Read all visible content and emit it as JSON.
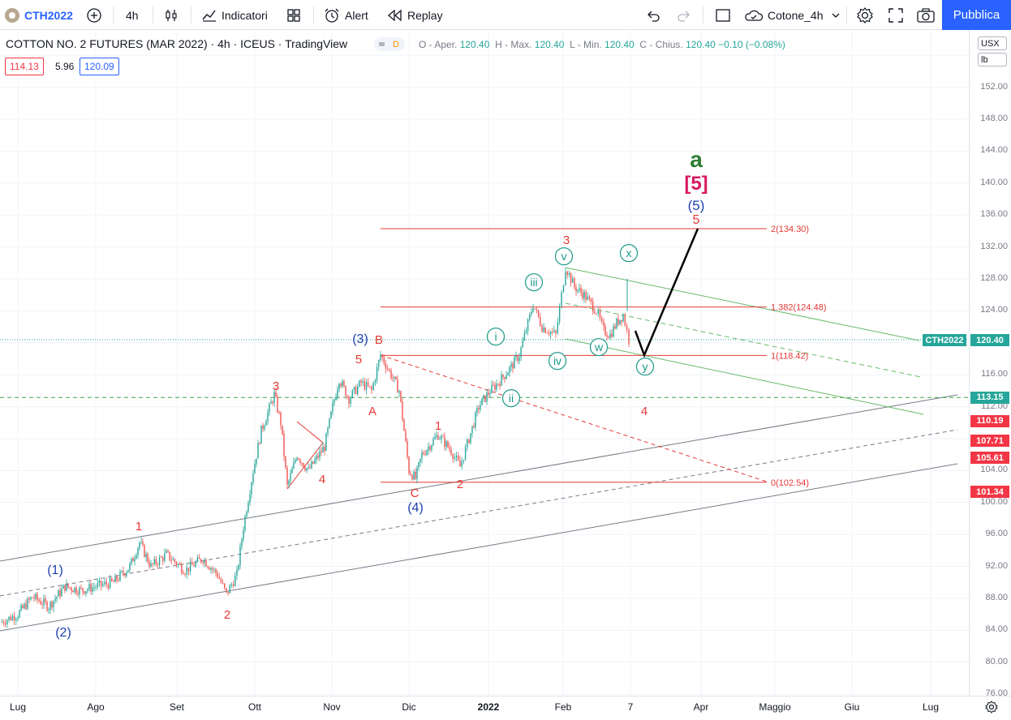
{
  "toolbar": {
    "symbol": "CTH2022",
    "interval": "4h",
    "indicators_label": "Indicatori",
    "alert_label": "Alert",
    "replay_label": "Replay",
    "layout_name": "Cotone_4h",
    "publish_label": "Pubblica"
  },
  "legend": {
    "title": "COTTON NO. 2 FUTURES (MAR 2022) · 4h · ICEUS · TradingView",
    "badge": "D",
    "open_label": "O - Aper.",
    "open": "120.40",
    "high_label": "H - Max.",
    "high": "120.40",
    "low_label": "L - Min.",
    "low": "120.40",
    "close_label": "C - Chius.",
    "close": "120.40",
    "change": "−0.10 (−0.08%)",
    "ind_upper": "114.13",
    "ind_width": "5.96",
    "ind_lower": "120.09"
  },
  "price_scale": {
    "currency": "USX",
    "unit": "lb",
    "ticks": [
      "152.00",
      "148.00",
      "144.00",
      "140.00",
      "136.00",
      "132.00",
      "128.00",
      "124.00",
      "116.00",
      "112.00",
      "104.00",
      "100.00",
      "96.00",
      "92.00",
      "88.00",
      "84.00",
      "80.00",
      "76.00"
    ],
    "last_price": "120.40",
    "symbol_tag": "CTH2022",
    "tags": [
      {
        "value": "113.15",
        "color": "#26a69a"
      },
      {
        "value": "110.19",
        "color": "#f23645"
      },
      {
        "value": "107.71",
        "color": "#f23645"
      },
      {
        "value": "105.61",
        "color": "#f23645"
      },
      {
        "value": "101.34",
        "color": "#f23645"
      }
    ]
  },
  "time_scale": {
    "labels": [
      "Lug",
      "Ago",
      "Set",
      "Ott",
      "Nov",
      "Dic",
      "2022",
      "Feb",
      "7",
      "Apr",
      "Maggio",
      "Giu",
      "Lug"
    ]
  },
  "colors": {
    "up": "#26a69a",
    "down": "#ef5350",
    "accent": "#2962ff",
    "wave_red": "#e53935",
    "wave_blue": "#1e40af",
    "wave_green": "#2e7d32",
    "wave_teal": "#1e9a8a",
    "fib_red": "#e53935",
    "channel_gray": "#787b86",
    "channel_green": "#66bb6a"
  },
  "chart_data": {
    "type": "candlestick",
    "symbol": "CTH2022",
    "interval": "4h",
    "ylim": [
      76,
      156
    ],
    "x_labels": [
      "Lug",
      "Ago",
      "Set",
      "Ott",
      "Nov",
      "Dic",
      "2022",
      "Feb",
      "7",
      "Apr",
      "Maggio",
      "Giu",
      "Lug"
    ],
    "price_path": [
      {
        "t": "Lug",
        "price": 85
      },
      {
        "t": "Ago-start",
        "price": 88
      },
      {
        "t": "Ago-mid",
        "price": 89.5
      },
      {
        "t": "Set-early",
        "price": 95,
        "note": "wave 1"
      },
      {
        "t": "Set-late",
        "price": 88.5,
        "note": "wave 2"
      },
      {
        "t": "Ott-mid",
        "price": 113.5,
        "note": "wave 3"
      },
      {
        "t": "Ott-late",
        "price": 101.5,
        "note": "wave 4"
      },
      {
        "t": "Nov-late",
        "price": 118.5,
        "note": "wave 5 / (3) / B"
      },
      {
        "t": "Dic-early",
        "price": 103,
        "note": "C / (4)"
      },
      {
        "t": "Dic-mid",
        "price": 108.5,
        "note": "1"
      },
      {
        "t": "Dic-late",
        "price": 104.5,
        "note": "2"
      },
      {
        "t": "Gen-mid",
        "price": 124.8,
        "note": "iii"
      },
      {
        "t": "Gen-late",
        "price": 121,
        "note": "iv"
      },
      {
        "t": "Feb-start",
        "price": 129.5,
        "note": "v / 3"
      },
      {
        "t": "Feb-mid",
        "price": 119.5,
        "note": "w"
      },
      {
        "t": "Feb-late",
        "price": 128,
        "note": "x"
      },
      {
        "t": "last",
        "price": 120.4
      }
    ],
    "fib_levels": [
      {
        "ratio": "2",
        "price": 134.3,
        "label": "2(134.30)"
      },
      {
        "ratio": "1.382",
        "price": 124.48,
        "label": "1.382(124.48)"
      },
      {
        "ratio": "1",
        "price": 118.42,
        "label": "1(118.42)"
      },
      {
        "ratio": "0",
        "price": 102.54,
        "label": "0(102.54)"
      }
    ],
    "wave_labels": [
      {
        "text": "(1)",
        "color": "blue"
      },
      {
        "text": "(2)",
        "color": "blue"
      },
      {
        "text": "1",
        "color": "red"
      },
      {
        "text": "2",
        "color": "red"
      },
      {
        "text": "3",
        "color": "red"
      },
      {
        "text": "4",
        "color": "red"
      },
      {
        "text": "5",
        "color": "red"
      },
      {
        "text": "(3)",
        "color": "blue"
      },
      {
        "text": "B",
        "color": "red"
      },
      {
        "text": "A",
        "color": "red"
      },
      {
        "text": "C",
        "color": "red"
      },
      {
        "text": "(4)",
        "color": "blue"
      },
      {
        "text": "1",
        "color": "red"
      },
      {
        "text": "2",
        "color": "red"
      },
      {
        "text": "i",
        "color": "teal"
      },
      {
        "text": "ii",
        "color": "teal"
      },
      {
        "text": "iii",
        "color": "teal"
      },
      {
        "text": "iv",
        "color": "teal"
      },
      {
        "text": "v",
        "color": "teal"
      },
      {
        "text": "3",
        "color": "red"
      },
      {
        "text": "w",
        "color": "teal"
      },
      {
        "text": "x",
        "color": "teal"
      },
      {
        "text": "y",
        "color": "teal"
      },
      {
        "text": "4",
        "color": "red"
      },
      {
        "text": "5",
        "color": "red"
      },
      {
        "text": "(5)",
        "color": "blue"
      },
      {
        "text": "[5]",
        "color": "magenta"
      },
      {
        "text": "a",
        "color": "green"
      }
    ],
    "projection": [
      {
        "t": "last",
        "price": 123
      },
      {
        "t": "Mar-early",
        "price": 118.3,
        "note": "y / 4"
      },
      {
        "t": "Mar-late",
        "price": 134.3,
        "note": "5"
      }
    ],
    "horizontal_lines": [
      {
        "price": 120.4,
        "style": "dotted",
        "color": "teal"
      },
      {
        "price": 113.15,
        "style": "dashed",
        "color": "green"
      }
    ]
  }
}
